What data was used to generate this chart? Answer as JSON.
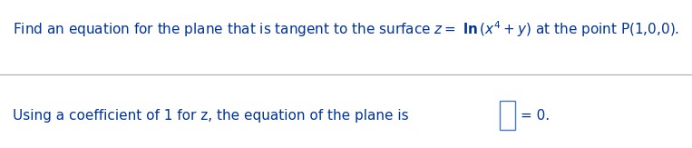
{
  "line1_full": "Find an equation for the plane that is tangent to the surface $z=$ $\\mathbf{ln}\\,(x^{4}+y)$ at the point P(1,0,0).",
  "line2_pre": "Using a coefficient of 1 for z, the equation of the plane is ",
  "line2_post": "= 0.",
  "text_color": "#003399",
  "background_color": "#ffffff",
  "divider_color": "#aaaaaa",
  "font_size": 11.0,
  "box_color": "#4477cc",
  "figwidth": 7.63,
  "figheight": 1.63,
  "dpi": 100
}
